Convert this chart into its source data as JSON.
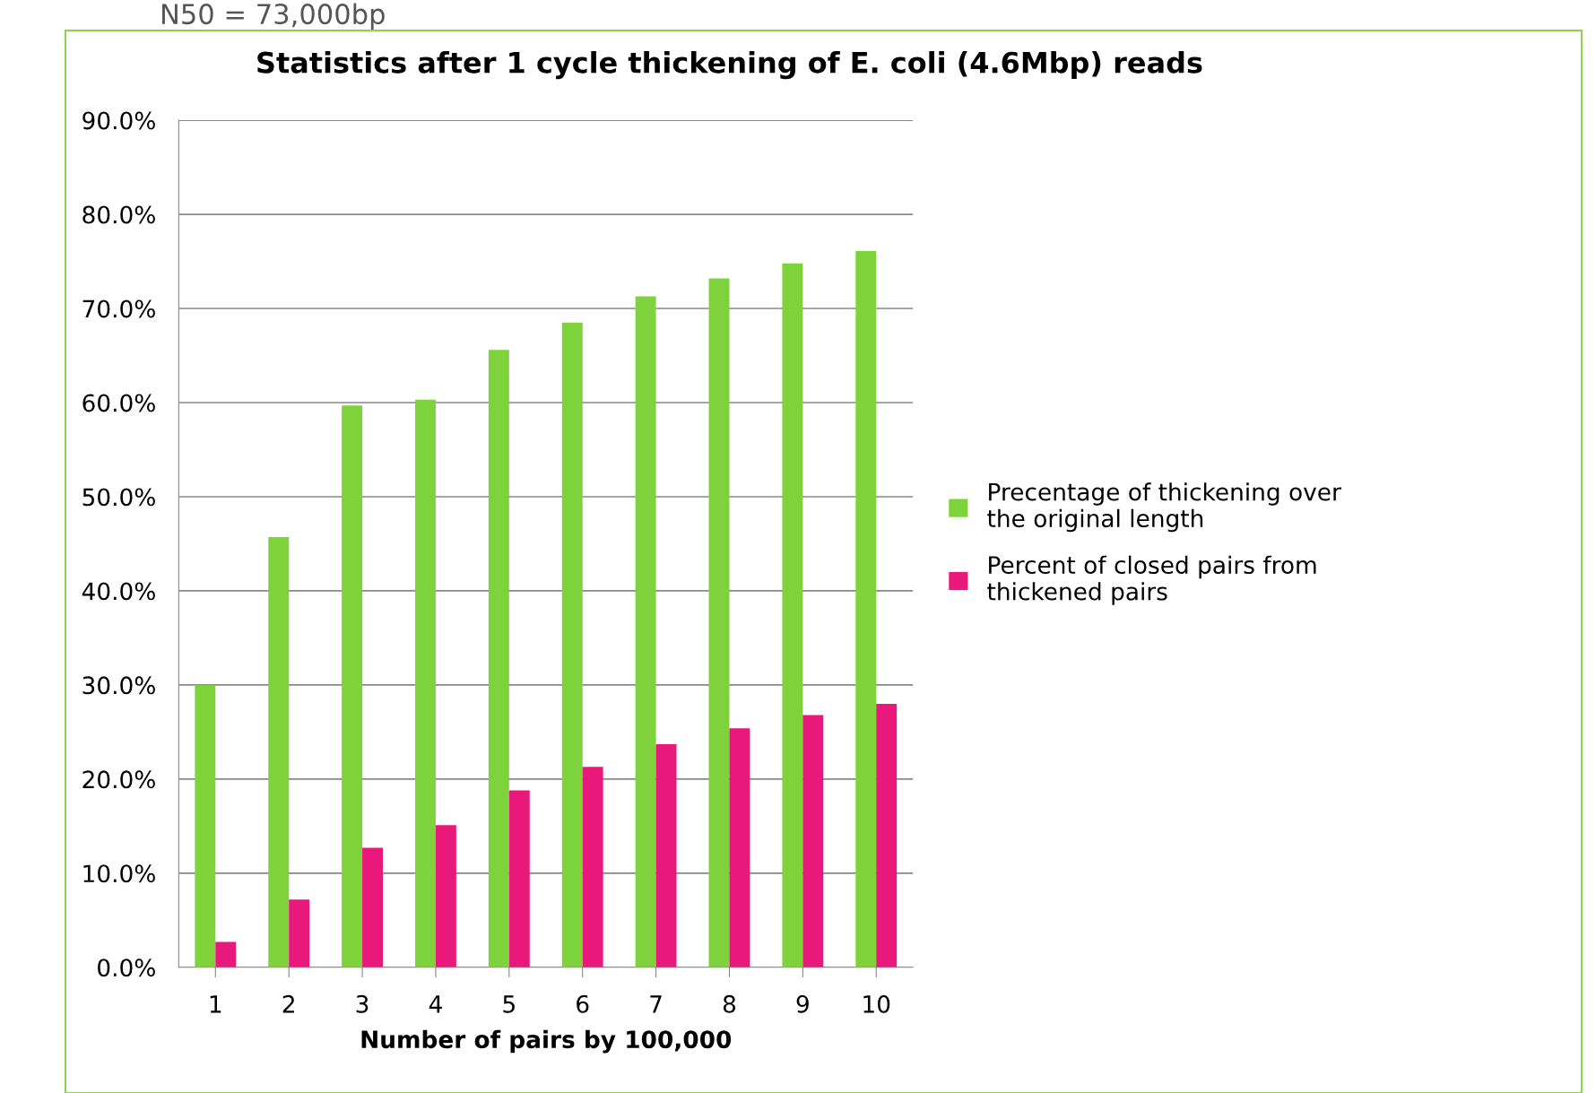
{
  "chart_data": {
    "type": "bar",
    "title": "Statistics after 1 cycle thickening of E. coli (4.6Mbp) reads",
    "xlabel": "Number of pairs by 100,000",
    "annotations": [
      "N50 = 73,000bp"
    ],
    "categories": [
      "1",
      "2",
      "3",
      "4",
      "5",
      "6",
      "7",
      "8",
      "9",
      "10"
    ],
    "series": [
      {
        "name": "Precentage of thickening over the original length",
        "color": "#7ed33c",
        "values": [
          30.0,
          45.7,
          59.7,
          60.3,
          65.6,
          68.5,
          71.3,
          73.2,
          74.8,
          76.1
        ]
      },
      {
        "name": "Percent of closed pairs from thickened pairs",
        "color": "#e8197b",
        "values": [
          2.7,
          7.2,
          12.7,
          15.1,
          18.8,
          21.3,
          23.7,
          25.4,
          26.8,
          28.0
        ]
      }
    ],
    "ylim": [
      0,
      90
    ],
    "yticks": [
      {
        "value": 0,
        "label": "0.0%"
      },
      {
        "value": 10,
        "label": "10.0%"
      },
      {
        "value": 20,
        "label": "20.0%"
      },
      {
        "value": 30,
        "label": "30.0%"
      },
      {
        "value": 40,
        "label": "40.0%"
      },
      {
        "value": 50,
        "label": "50.0%"
      },
      {
        "value": 60,
        "label": "60.0%"
      },
      {
        "value": 70,
        "label": "70.0%"
      },
      {
        "value": 80,
        "label": "80.0%"
      },
      {
        "value": 90,
        "label": "90.0%"
      }
    ],
    "grid": "y",
    "legend": "right"
  }
}
